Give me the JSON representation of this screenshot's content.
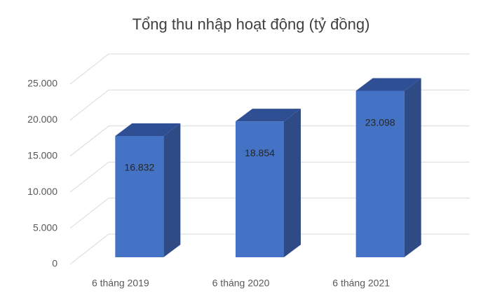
{
  "chart_data": {
    "type": "bar3d",
    "title": "Tổng thu nhập hoạt động (tỷ đồng)",
    "categories": [
      "6 tháng 2019",
      "6 tháng 2020",
      "6 tháng 2021"
    ],
    "values": [
      16832,
      18854,
      23098
    ],
    "value_labels": [
      "16.832",
      "18.854",
      "23.098"
    ],
    "color": "#4472c4",
    "ylim": [
      0,
      25000
    ],
    "yticks": [
      0,
      {
        "value": 5000,
        "label": "5.000"
      },
      {
        "value": 10000,
        "label": "10.000"
      },
      {
        "value": 15000,
        "label": "15.000"
      },
      {
        "value": 20000,
        "label": "20.000"
      },
      {
        "value": 25000,
        "label": "25.000"
      }
    ],
    "grid": true
  }
}
